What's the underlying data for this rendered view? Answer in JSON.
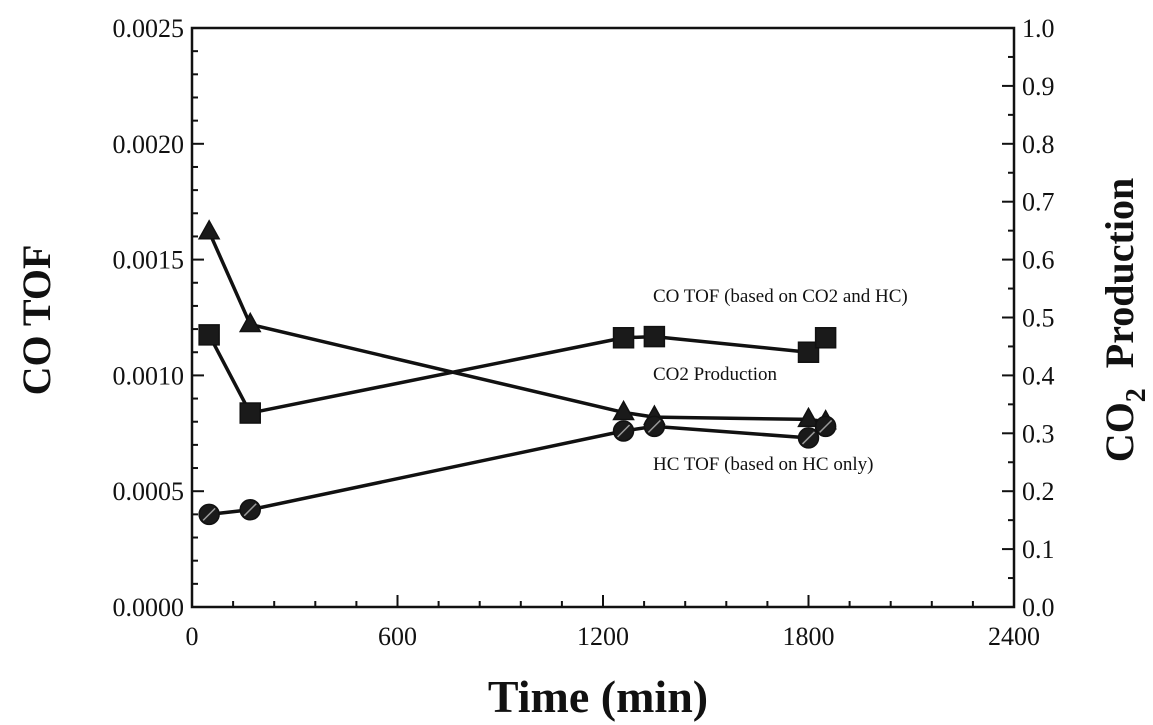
{
  "chart_data": {
    "type": "line",
    "title": "",
    "xlabel": "Time  (min)",
    "ylabel_left": "CO TOF",
    "ylabel_right": {
      "base": "CO",
      "subscript": "2",
      "suffix": "  Production"
    },
    "xlim": [
      0,
      2400
    ],
    "ylim_left": [
      0,
      0.0025
    ],
    "ylim_right": [
      0,
      1.0
    ],
    "x_ticks": [
      0,
      600,
      1200,
      1800,
      2400
    ],
    "x_tick_labels": [
      "0",
      "600",
      "1200",
      "1800",
      "2400"
    ],
    "y_left_ticks": [
      0,
      0.0005,
      0.001,
      0.0015,
      0.002,
      0.0025
    ],
    "y_left_tick_labels": [
      "0.0000",
      "0.0005",
      "0.0010",
      "0.0015",
      "0.0020",
      "0.0025"
    ],
    "y_right_ticks": [
      0,
      0.1,
      0.2,
      0.3,
      0.4,
      0.5,
      0.6,
      0.7,
      0.8,
      0.9,
      1.0
    ],
    "y_right_tick_labels": [
      "0.0",
      "0.1",
      "0.2",
      "0.3",
      "0.4",
      "0.5",
      "0.6",
      "0.7",
      "0.8",
      "0.9",
      "1.0"
    ],
    "grid": false,
    "legend": "none",
    "series": [
      {
        "annotation": "CO TOF (based on CO2 and HC)",
        "axis": "left",
        "marker": "triangle",
        "x": [
          50,
          170,
          1260,
          1350,
          1800,
          1850
        ],
        "y": [
          0.00162,
          0.00122,
          0.00084,
          0.00082,
          0.00081,
          0.0008
        ]
      },
      {
        "annotation": "CO2 Production",
        "axis": "right",
        "marker": "square",
        "x": [
          50,
          170,
          1260,
          1350,
          1800,
          1850
        ],
        "y": [
          0.47,
          0.335,
          0.465,
          0.467,
          0.44,
          0.465
        ]
      },
      {
        "annotation": "HC TOF (based on HC only)",
        "axis": "left",
        "marker": "circle-cross",
        "x": [
          50,
          170,
          1260,
          1350,
          1800,
          1850
        ],
        "y": [
          0.0004,
          0.00042,
          0.00076,
          0.00078,
          0.00073,
          0.00078
        ]
      }
    ]
  }
}
